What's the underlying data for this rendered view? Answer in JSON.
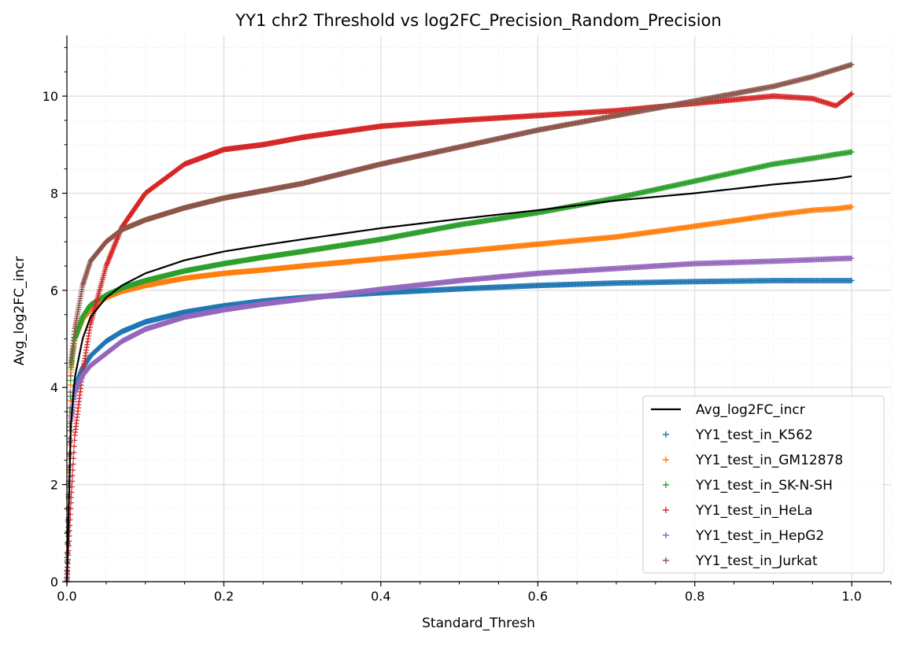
{
  "chart_data": {
    "type": "scatter",
    "title": "YY1 chr2 Threshold vs log2FC_Precision_Random_Precision",
    "xlabel": "Standard_Thresh",
    "ylabel": "Avg_log2FC_incr",
    "xlim": [
      0.0,
      1.05
    ],
    "ylim": [
      0,
      11.25
    ],
    "xticks": [
      0.0,
      0.2,
      0.4,
      0.6,
      0.8,
      1.0
    ],
    "xtick_labels": [
      "0.0",
      "0.2",
      "0.4",
      "0.6",
      "0.8",
      "1.0"
    ],
    "yticks": [
      0,
      2,
      4,
      6,
      8,
      10
    ],
    "ytick_labels": [
      "0",
      "2",
      "4",
      "6",
      "8",
      "10"
    ],
    "grid": true,
    "minor_grid": true,
    "legend_position": "lower-right",
    "x": [
      0.0,
      0.005,
      0.01,
      0.02,
      0.03,
      0.05,
      0.07,
      0.1,
      0.15,
      0.2,
      0.25,
      0.3,
      0.4,
      0.5,
      0.6,
      0.7,
      0.8,
      0.9,
      0.95,
      0.98,
      1.0
    ],
    "line": {
      "name": "Avg_log2FC_incr",
      "color": "#000000",
      "values": [
        0.0,
        3.2,
        4.2,
        5.0,
        5.45,
        5.85,
        6.1,
        6.35,
        6.62,
        6.8,
        6.93,
        7.05,
        7.28,
        7.47,
        7.65,
        7.85,
        8.0,
        8.18,
        8.25,
        8.3,
        8.35
      ]
    },
    "series": [
      {
        "name": "YY1_test_in_K562",
        "color": "#1f77b4",
        "values": [
          0.0,
          3.3,
          4.0,
          4.4,
          4.65,
          4.95,
          5.15,
          5.35,
          5.55,
          5.68,
          5.78,
          5.85,
          5.95,
          6.03,
          6.1,
          6.15,
          6.18,
          6.2,
          6.2,
          6.2,
          6.2
        ]
      },
      {
        "name": "YY1_test_in_GM12878",
        "color": "#ff7f0e",
        "values": [
          0.0,
          4.3,
          5.0,
          5.4,
          5.6,
          5.85,
          5.98,
          6.1,
          6.25,
          6.35,
          6.42,
          6.5,
          6.65,
          6.8,
          6.95,
          7.1,
          7.32,
          7.55,
          7.65,
          7.68,
          7.72
        ]
      },
      {
        "name": "YY1_test_in_SK-N-SH",
        "color": "#2ca02c",
        "values": [
          0.0,
          4.4,
          5.0,
          5.45,
          5.7,
          5.9,
          6.05,
          6.2,
          6.4,
          6.55,
          6.68,
          6.8,
          7.05,
          7.35,
          7.6,
          7.9,
          8.25,
          8.6,
          8.72,
          8.8,
          8.85
        ]
      },
      {
        "name": "YY1_test_in_HeLa",
        "color": "#d62728",
        "values": [
          0.0,
          1.6,
          3.0,
          4.3,
          5.3,
          6.5,
          7.3,
          8.0,
          8.6,
          8.9,
          9.0,
          9.15,
          9.38,
          9.5,
          9.6,
          9.7,
          9.85,
          10.0,
          9.95,
          9.8,
          10.05
        ]
      },
      {
        "name": "YY1_test_in_HepG2",
        "color": "#9467bd",
        "values": [
          0.0,
          3.3,
          3.9,
          4.25,
          4.45,
          4.7,
          4.95,
          5.2,
          5.45,
          5.6,
          5.72,
          5.82,
          6.02,
          6.2,
          6.35,
          6.45,
          6.55,
          6.6,
          6.63,
          6.65,
          6.66
        ]
      },
      {
        "name": "YY1_test_in_Jurkat",
        "color": "#8c564b",
        "values": [
          0.0,
          4.5,
          5.2,
          6.1,
          6.6,
          7.0,
          7.25,
          7.45,
          7.7,
          7.9,
          8.05,
          8.2,
          8.6,
          8.95,
          9.3,
          9.6,
          9.9,
          10.2,
          10.4,
          10.55,
          10.65
        ]
      }
    ]
  }
}
